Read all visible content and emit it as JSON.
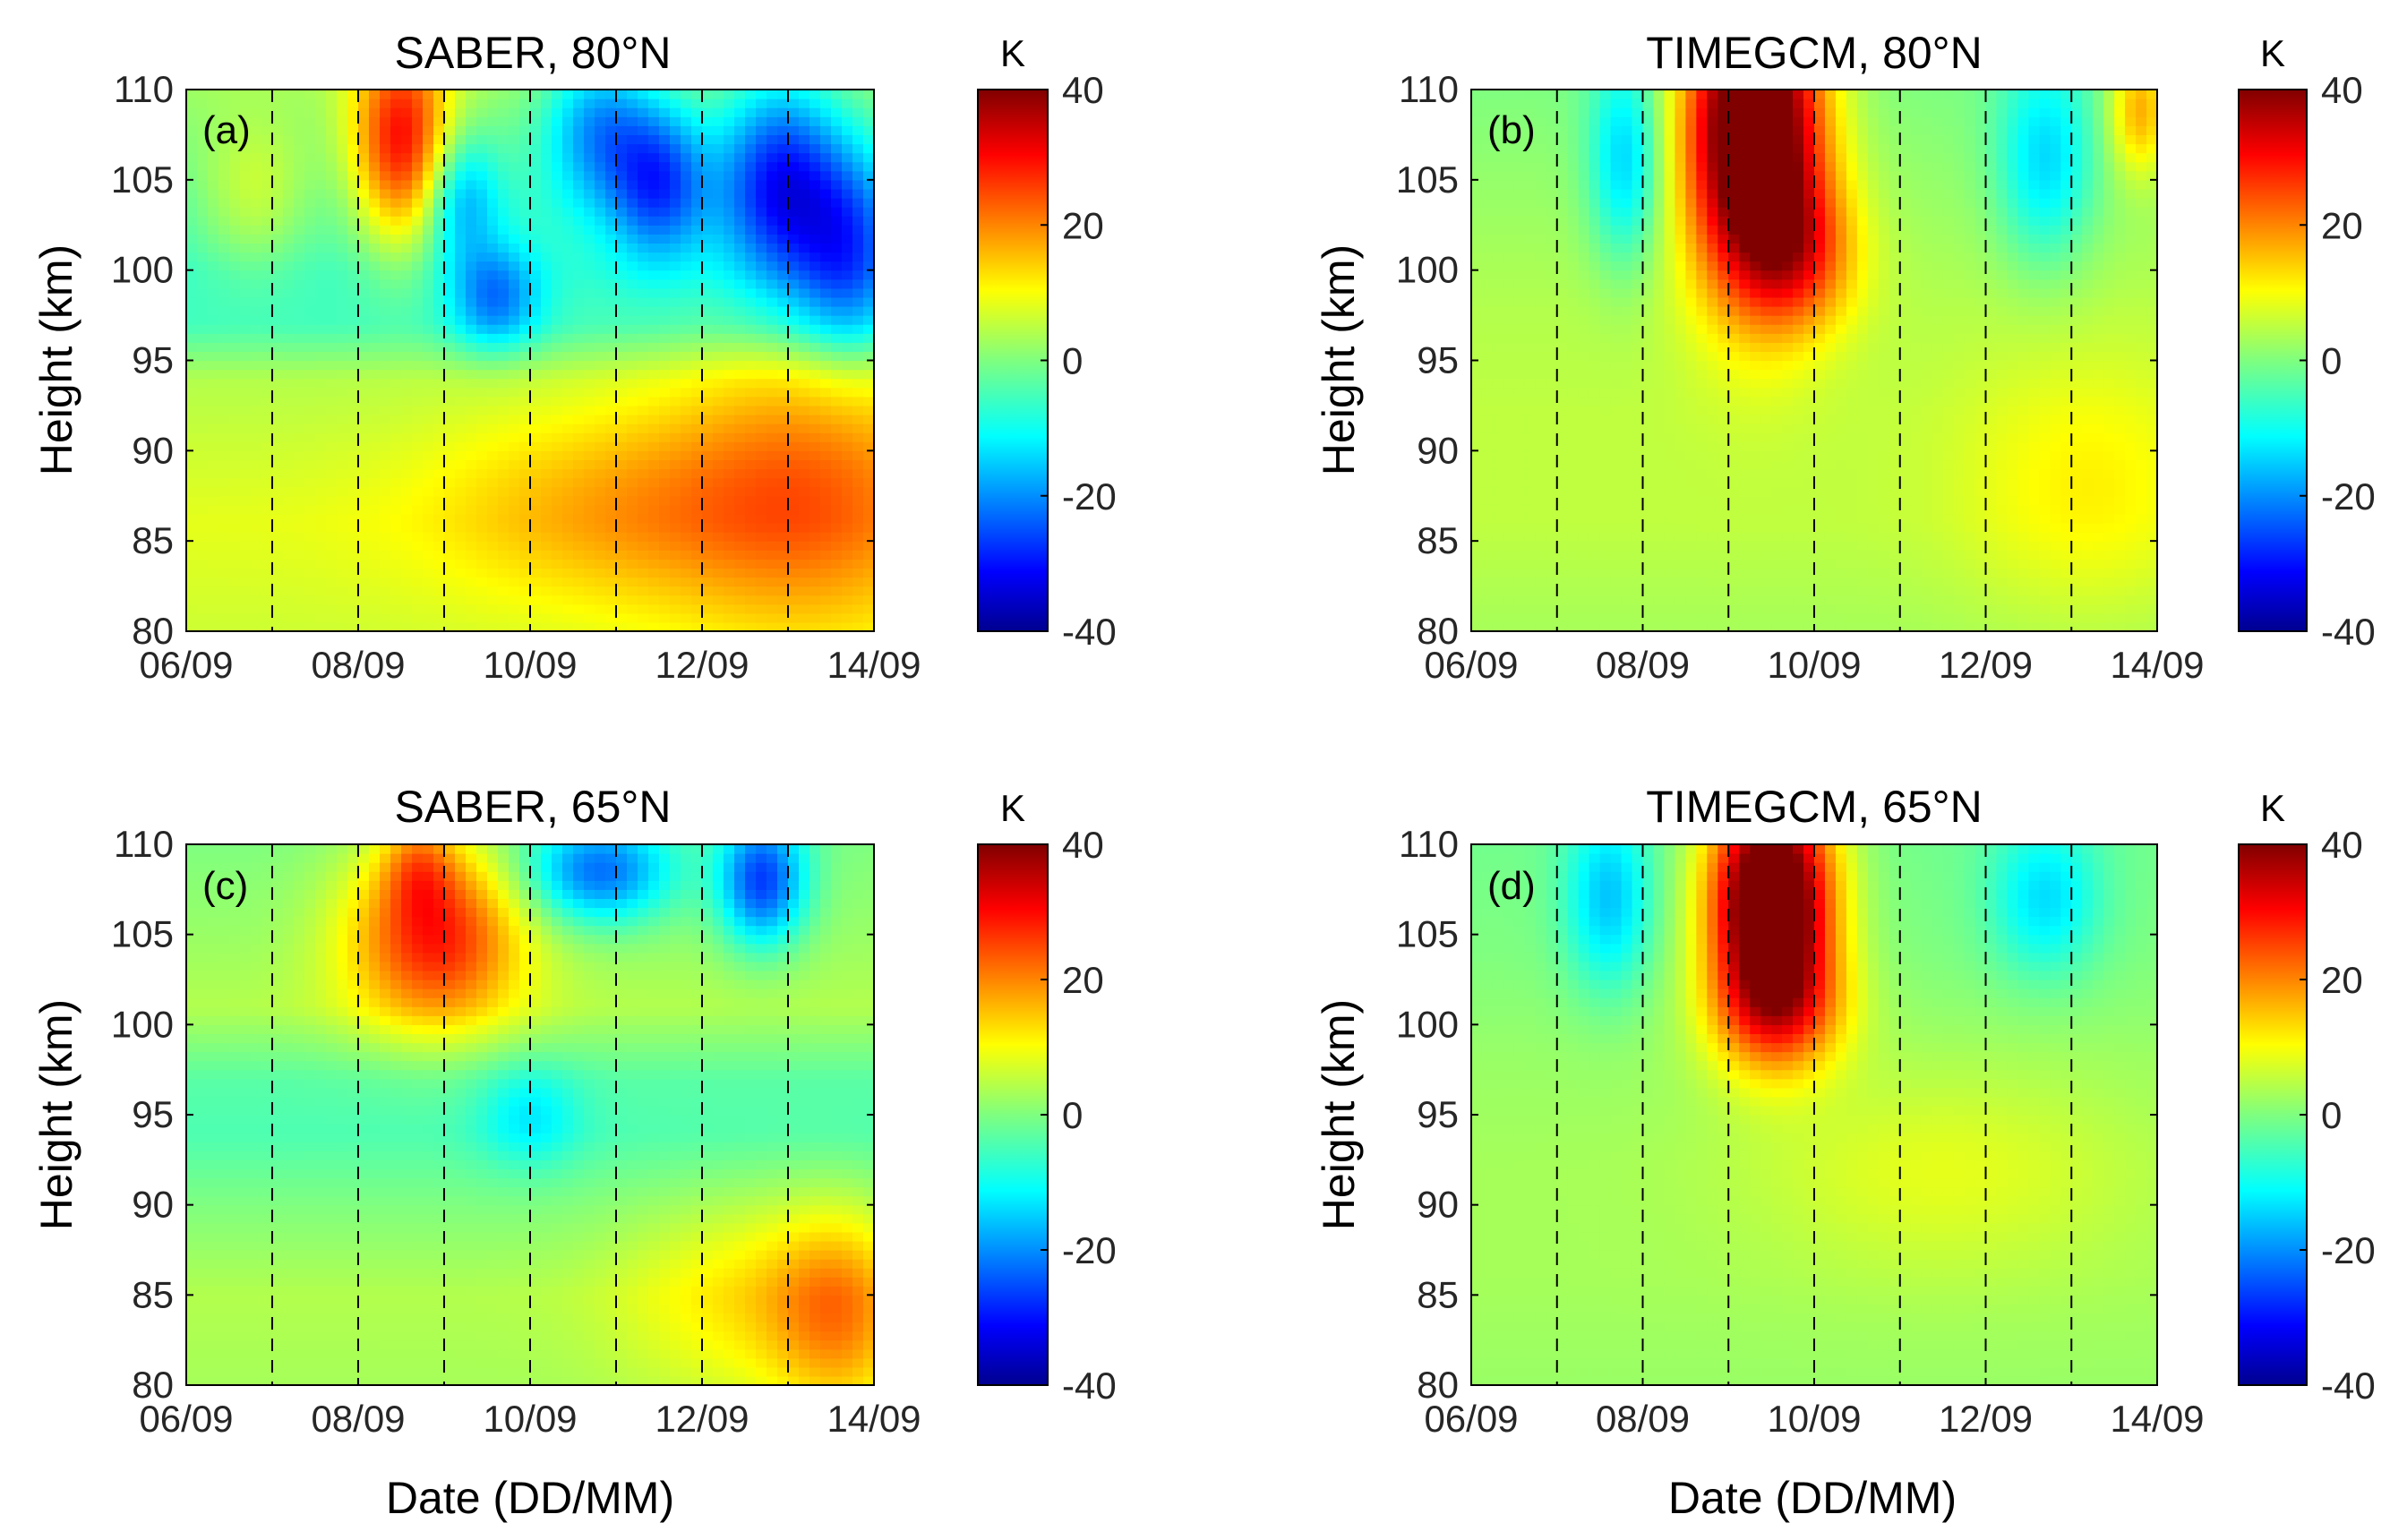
{
  "figure": {
    "type": "heatmap",
    "description_unit": "K",
    "panels": [
      {
        "label": "(a)",
        "title": "SABER, 80°N",
        "xlabel": "",
        "ylabel": "Height (km)",
        "show_xlabel": false
      },
      {
        "label": "(b)",
        "title": "TIMEGCM, 80°N",
        "xlabel": "",
        "ylabel": "Height (km)",
        "show_xlabel": false
      },
      {
        "label": "(c)",
        "title": "SABER, 65°N",
        "xlabel": "Date (DD/MM)",
        "ylabel": "Height (km)",
        "show_xlabel": true
      },
      {
        "label": "(d)",
        "title": "TIMEGCM, 65°N",
        "xlabel": "Date (DD/MM)",
        "ylabel": "Height (km)",
        "show_xlabel": true
      }
    ]
  },
  "chart_data": [
    {
      "type": "heatmap",
      "title": "SABER, 80°N",
      "panel": "(a)",
      "xlabel": "",
      "ylabel": "Height (km)",
      "x_ticks": [
        "06/09",
        "08/09",
        "10/09",
        "12/09",
        "14/09"
      ],
      "x_range_days": [
        6,
        14
      ],
      "y_ticks": [
        80,
        85,
        90,
        95,
        100,
        105,
        110
      ],
      "ylim": [
        80,
        110
      ],
      "dashed_day_lines": [
        7,
        8,
        9,
        10,
        11,
        12,
        13
      ],
      "colorbar": {
        "unit": "K",
        "ticks": [
          40,
          20,
          0,
          -20,
          -40
        ],
        "range": [
          -40,
          40
        ],
        "colormap": "jet"
      },
      "base_profile": [
        [
          80,
          6
        ],
        [
          86,
          8
        ],
        [
          90,
          6
        ],
        [
          94,
          4
        ],
        [
          97,
          -5
        ],
        [
          100,
          -6
        ],
        [
          104,
          -4
        ],
        [
          110,
          2
        ]
      ],
      "blobs": [
        {
          "day": 8.5,
          "height": 107,
          "amp": 30,
          "dday": 0.4,
          "dh": 4
        },
        {
          "day": 9.6,
          "height": 98.5,
          "amp": -16,
          "dday": 0.35,
          "dh": 2
        },
        {
          "day": 9.2,
          "height": 104,
          "amp": -14,
          "dday": 0.3,
          "dh": 2.5
        },
        {
          "day": 10.8,
          "height": 108,
          "amp": -18,
          "dday": 0.45,
          "dh": 3
        },
        {
          "day": 11.5,
          "height": 105,
          "amp": -22,
          "dday": 0.4,
          "dh": 3
        },
        {
          "day": 12.9,
          "height": 105,
          "amp": -26,
          "dday": 0.5,
          "dh": 4
        },
        {
          "day": 13.7,
          "height": 101,
          "amp": -20,
          "dday": 0.45,
          "dh": 4
        },
        {
          "day": 11.0,
          "height": 87,
          "amp": 9,
          "dday": 1.5,
          "dh": 4
        },
        {
          "day": 13.3,
          "height": 88,
          "amp": 14,
          "dday": 1.2,
          "dh": 6
        },
        {
          "day": 6.8,
          "height": 104,
          "amp": 9,
          "dday": 0.5,
          "dh": 3
        }
      ]
    },
    {
      "type": "heatmap",
      "title": "TIMEGCM, 80°N",
      "panel": "(b)",
      "xlabel": "",
      "ylabel": "Height (km)",
      "x_ticks": [
        "06/09",
        "08/09",
        "10/09",
        "12/09",
        "14/09"
      ],
      "x_range_days": [
        6,
        14
      ],
      "y_ticks": [
        80,
        85,
        90,
        95,
        100,
        105,
        110
      ],
      "ylim": [
        80,
        110
      ],
      "dashed_day_lines": [
        7,
        8,
        9,
        10,
        11,
        12,
        13
      ],
      "colorbar": {
        "unit": "K",
        "ticks": [
          40,
          20,
          0,
          -20,
          -40
        ],
        "range": [
          -40,
          40
        ],
        "colormap": "jet"
      },
      "base_profile": [
        [
          80,
          3
        ],
        [
          86,
          5
        ],
        [
          92,
          5
        ],
        [
          98,
          4
        ],
        [
          104,
          2
        ],
        [
          110,
          0
        ]
      ],
      "blobs": [
        {
          "day": 9.3,
          "height": 108,
          "amp": 55,
          "dday": 0.55,
          "dh": 6
        },
        {
          "day": 9.8,
          "height": 101,
          "amp": 18,
          "dday": 0.5,
          "dh": 3
        },
        {
          "day": 7.8,
          "height": 106,
          "amp": -15,
          "dday": 0.3,
          "dh": 4
        },
        {
          "day": 12.7,
          "height": 106,
          "amp": -14,
          "dday": 0.4,
          "dh": 4
        },
        {
          "day": 13.8,
          "height": 109,
          "amp": 16,
          "dday": 0.25,
          "dh": 2.5
        },
        {
          "day": 13.2,
          "height": 88,
          "amp": 6,
          "dday": 1.0,
          "dh": 5
        }
      ]
    },
    {
      "type": "heatmap",
      "title": "SABER, 65°N",
      "panel": "(c)",
      "xlabel": "Date (DD/MM)",
      "ylabel": "Height (km)",
      "x_ticks": [
        "06/09",
        "08/09",
        "10/09",
        "12/09",
        "14/09"
      ],
      "x_range_days": [
        6,
        14
      ],
      "y_ticks": [
        80,
        85,
        90,
        95,
        100,
        105,
        110
      ],
      "ylim": [
        80,
        110
      ],
      "dashed_day_lines": [
        7,
        8,
        9,
        10,
        11,
        12,
        13
      ],
      "colorbar": {
        "unit": "K",
        "ticks": [
          40,
          20,
          0,
          -20,
          -40
        ],
        "range": [
          -40,
          40
        ],
        "colormap": "jet"
      },
      "base_profile": [
        [
          80,
          3
        ],
        [
          85,
          4
        ],
        [
          90,
          0
        ],
        [
          94,
          -4
        ],
        [
          97,
          -3
        ],
        [
          101,
          4
        ],
        [
          105,
          2
        ],
        [
          110,
          0
        ]
      ],
      "blobs": [
        {
          "day": 8.9,
          "height": 105,
          "amp": 26,
          "dday": 0.7,
          "dh": 3.5
        },
        {
          "day": 8.7,
          "height": 109,
          "amp": 12,
          "dday": 0.3,
          "dh": 2
        },
        {
          "day": 10.8,
          "height": 108.5,
          "amp": -22,
          "dday": 0.6,
          "dh": 2
        },
        {
          "day": 12.7,
          "height": 108,
          "amp": -26,
          "dday": 0.35,
          "dh": 2.5
        },
        {
          "day": 13.6,
          "height": 84,
          "amp": 14,
          "dday": 0.55,
          "dh": 4
        },
        {
          "day": 12.5,
          "height": 85,
          "amp": 8,
          "dday": 1.0,
          "dh": 4
        },
        {
          "day": 10.0,
          "height": 95,
          "amp": -8,
          "dday": 0.4,
          "dh": 2
        }
      ]
    },
    {
      "type": "heatmap",
      "title": "TIMEGCM, 65°N",
      "panel": "(d)",
      "xlabel": "Date (DD/MM)",
      "ylabel": "Height (km)",
      "x_ticks": [
        "06/09",
        "08/09",
        "10/09",
        "12/09",
        "14/09"
      ],
      "x_range_days": [
        6,
        14
      ],
      "y_ticks": [
        80,
        85,
        90,
        95,
        100,
        105,
        110
      ],
      "ylim": [
        80,
        110
      ],
      "dashed_day_lines": [
        7,
        8,
        9,
        10,
        11,
        12,
        13
      ],
      "colorbar": {
        "unit": "K",
        "ticks": [
          40,
          20,
          0,
          -20,
          -40
        ],
        "range": [
          -40,
          40
        ],
        "colormap": "jet"
      },
      "base_profile": [
        [
          80,
          2
        ],
        [
          86,
          3
        ],
        [
          92,
          3
        ],
        [
          98,
          2
        ],
        [
          104,
          0
        ],
        [
          110,
          -1
        ]
      ],
      "blobs": [
        {
          "day": 9.5,
          "height": 107,
          "amp": 55,
          "dday": 0.5,
          "dh": 4.5
        },
        {
          "day": 9.6,
          "height": 101,
          "amp": 18,
          "dday": 0.55,
          "dh": 2.5
        },
        {
          "day": 7.6,
          "height": 107,
          "amp": -14,
          "dday": 0.35,
          "dh": 3.5
        },
        {
          "day": 12.7,
          "height": 107,
          "amp": -12,
          "dday": 0.45,
          "dh": 3
        },
        {
          "day": 11.5,
          "height": 92,
          "amp": 5,
          "dday": 1.5,
          "dh": 4
        }
      ]
    }
  ]
}
